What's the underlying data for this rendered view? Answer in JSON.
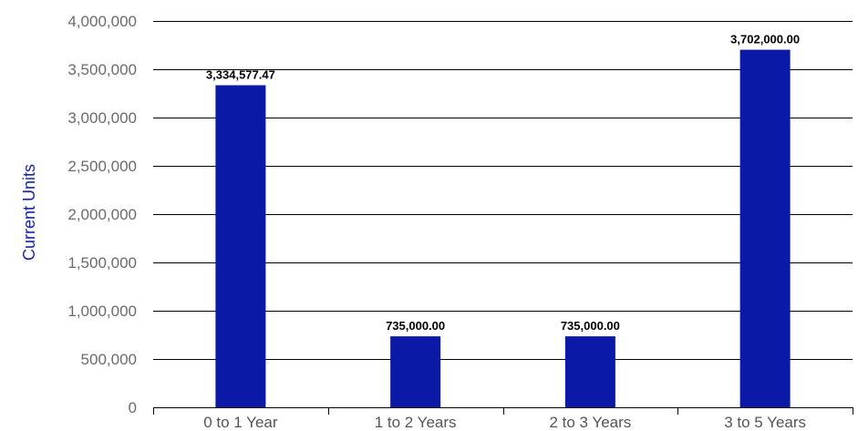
{
  "chart_data": {
    "type": "bar",
    "title": "",
    "xlabel": "",
    "ylabel": "Current Units",
    "categories": [
      "0 to 1 Year",
      "1 to 2 Years",
      "2 to 3 Years",
      "3 to 5 Years"
    ],
    "values": [
      3334577.47,
      735000,
      735000,
      3702000
    ],
    "data_labels": [
      "3,334,577.47",
      "735,000.00",
      "735,000.00",
      "3,702,000.00"
    ],
    "ylim": [
      0,
      4000000
    ],
    "yticks": [
      0,
      500000,
      1000000,
      1500000,
      2000000,
      2500000,
      3000000,
      3500000,
      4000000
    ],
    "ytick_labels": [
      "0",
      "500,000",
      "1,000,000",
      "1,500,000",
      "2,000,000",
      "2,500,000",
      "3,000,000",
      "3,500,000",
      "4,000,000"
    ],
    "grid": true,
    "legend": "none",
    "colors": {
      "bar": "#0a1aa6",
      "ylabel": "#1a24a8",
      "grid": "#000000"
    }
  }
}
